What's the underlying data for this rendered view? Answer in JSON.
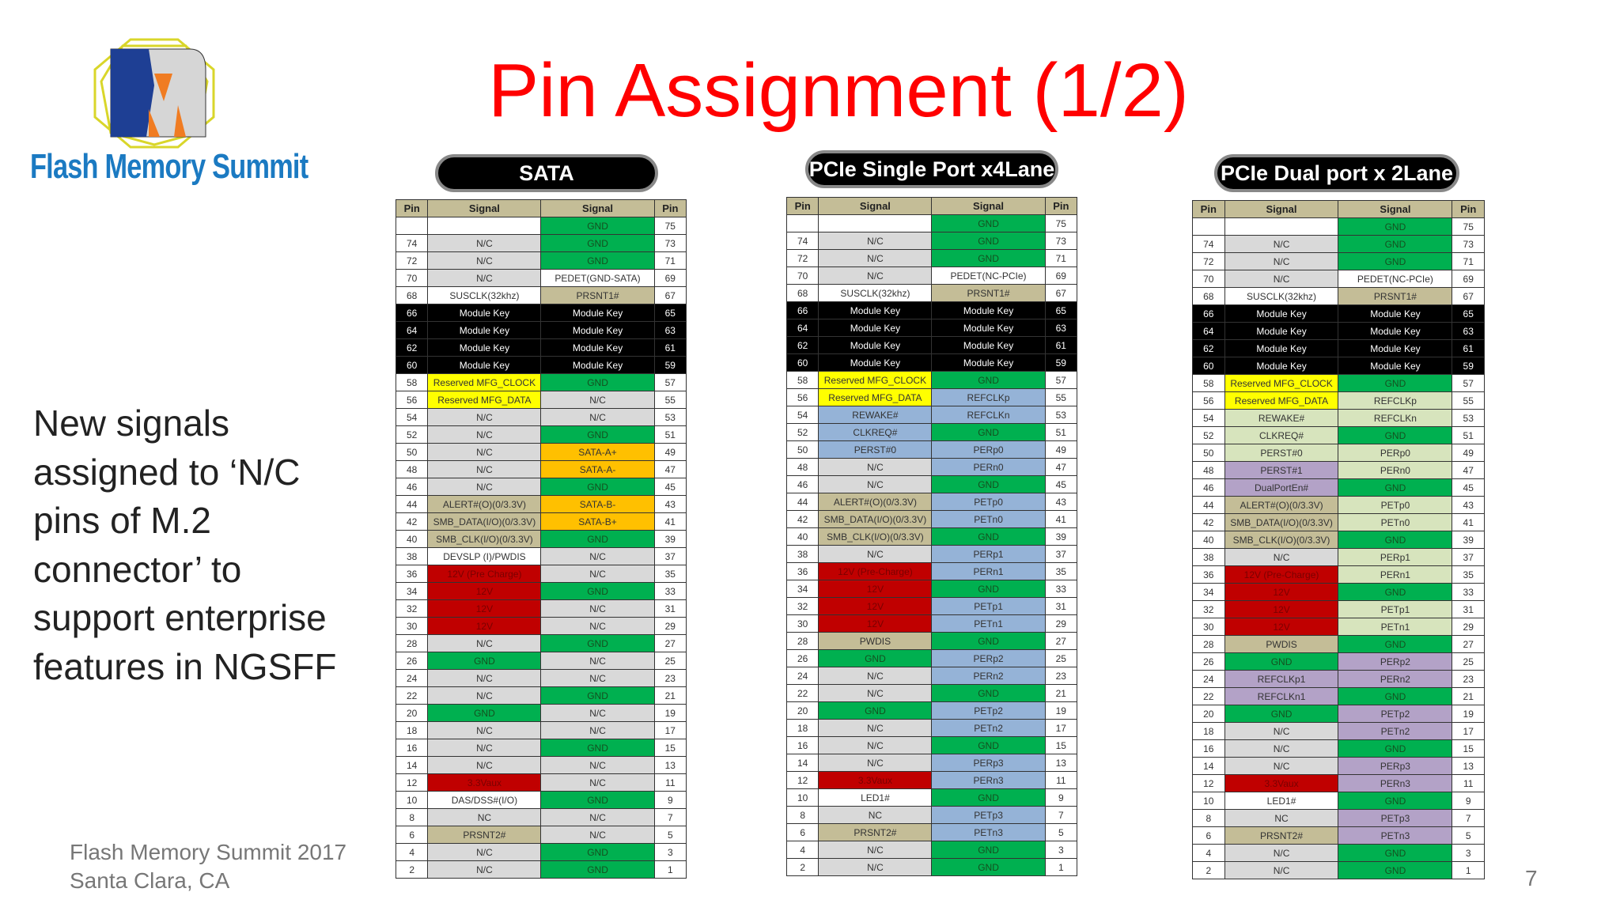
{
  "slide": {
    "title": "Pin Assignment (1/2)",
    "logo_text": "Flash Memory Summit",
    "body": "New signals assigned to ‘N/C pins of M.2 connector’ to support enterprise features in NGSFF",
    "footer_line1": "Flash Memory Summit 2017",
    "footer_line2": "Santa Clara, CA",
    "page_number": "7"
  },
  "colors": {
    "g": "#00b050",
    "n": "#d9d9d9",
    "w": "#ffffff",
    "t": "#c4bd97",
    "k": "#000000",
    "y": "#ffff00",
    "o": "#ffc000",
    "r": "#c00000",
    "b": "#95b3d7",
    "lg": "#d7e4bd",
    "p": "#b3a2c7",
    "title": "#ff0000",
    "logo_blue": "#1b7ac2"
  },
  "tables": [
    {
      "label": "SATA",
      "headers": [
        "Pin",
        "Signal",
        "Signal",
        "Pin"
      ],
      "rows": [
        [
          "",
          "",
          "w",
          "GND",
          "g",
          "75"
        ],
        [
          "74",
          "N/C",
          "n",
          "GND",
          "g",
          "73"
        ],
        [
          "72",
          "N/C",
          "n",
          "GND",
          "g",
          "71"
        ],
        [
          "70",
          "N/C",
          "n",
          "PEDET(GND-SATA)",
          "w",
          "69"
        ],
        [
          "68",
          "SUSCLK(32khz)",
          "w",
          "PRSNT1#",
          "t",
          "67"
        ],
        [
          "66",
          "Module Key",
          "k",
          "Module Key",
          "k",
          "65"
        ],
        [
          "64",
          "Module Key",
          "k",
          "Module Key",
          "k",
          "63"
        ],
        [
          "62",
          "Module Key",
          "k",
          "Module Key",
          "k",
          "61"
        ],
        [
          "60",
          "Module Key",
          "k",
          "Module Key",
          "k",
          "59"
        ],
        [
          "58",
          "Reserved MFG_CLOCK",
          "y",
          "GND",
          "g",
          "57"
        ],
        [
          "56",
          "Reserved MFG_DATA",
          "y",
          "N/C",
          "n",
          "55"
        ],
        [
          "54",
          "N/C",
          "n",
          "N/C",
          "n",
          "53"
        ],
        [
          "52",
          "N/C",
          "n",
          "GND",
          "g",
          "51"
        ],
        [
          "50",
          "N/C",
          "n",
          "SATA-A+",
          "o",
          "49"
        ],
        [
          "48",
          "N/C",
          "n",
          "SATA-A-",
          "o",
          "47"
        ],
        [
          "46",
          "N/C",
          "n",
          "GND",
          "g",
          "45"
        ],
        [
          "44",
          "ALERT#(O)(0/3.3V)",
          "t",
          "SATA-B-",
          "o",
          "43"
        ],
        [
          "42",
          "SMB_DATA(I/O)(0/3.3V)",
          "t",
          "SATA-B+",
          "o",
          "41"
        ],
        [
          "40",
          "SMB_CLK(I/O)(0/3.3V)",
          "t",
          "GND",
          "g",
          "39"
        ],
        [
          "38",
          "DEVSLP (I)/PWDIS",
          "w",
          "N/C",
          "n",
          "37"
        ],
        [
          "36",
          "12V (Pre Charge)",
          "r",
          "N/C",
          "n",
          "35"
        ],
        [
          "34",
          "12V",
          "r",
          "GND",
          "g",
          "33"
        ],
        [
          "32",
          "12V",
          "r",
          "N/C",
          "n",
          "31"
        ],
        [
          "30",
          "12V",
          "r",
          "N/C",
          "n",
          "29"
        ],
        [
          "28",
          "N/C",
          "n",
          "GND",
          "g",
          "27"
        ],
        [
          "26",
          "GND",
          "g",
          "N/C",
          "n",
          "25"
        ],
        [
          "24",
          "N/C",
          "n",
          "N/C",
          "n",
          "23"
        ],
        [
          "22",
          "N/C",
          "n",
          "GND",
          "g",
          "21"
        ],
        [
          "20",
          "GND",
          "g",
          "N/C",
          "n",
          "19"
        ],
        [
          "18",
          "N/C",
          "n",
          "N/C",
          "n",
          "17"
        ],
        [
          "16",
          "N/C",
          "n",
          "GND",
          "g",
          "15"
        ],
        [
          "14",
          "N/C",
          "n",
          "N/C",
          "n",
          "13"
        ],
        [
          "12",
          "3.3Vaux",
          "r",
          "N/C",
          "n",
          "11"
        ],
        [
          "10",
          "DAS/DSS#(I/O)",
          "w",
          "GND",
          "g",
          "9"
        ],
        [
          "8",
          "NC",
          "n",
          "N/C",
          "n",
          "7"
        ],
        [
          "6",
          "PRSNT2#",
          "t",
          "N/C",
          "n",
          "5"
        ],
        [
          "4",
          "N/C",
          "n",
          "GND",
          "g",
          "3"
        ],
        [
          "2",
          "N/C",
          "n",
          "GND",
          "g",
          "1"
        ]
      ]
    },
    {
      "label": "PCIe Single Port x4Lane",
      "headers": [
        "Pin",
        "Signal",
        "Signal",
        "Pin"
      ],
      "rows": [
        [
          "",
          "",
          "w",
          "GND",
          "g",
          "75"
        ],
        [
          "74",
          "N/C",
          "n",
          "GND",
          "g",
          "73"
        ],
        [
          "72",
          "N/C",
          "n",
          "GND",
          "g",
          "71"
        ],
        [
          "70",
          "N/C",
          "n",
          "PEDET(NC-PCIe)",
          "w",
          "69"
        ],
        [
          "68",
          "SUSCLK(32khz)",
          "w",
          "PRSNT1#",
          "t",
          "67"
        ],
        [
          "66",
          "Module Key",
          "k",
          "Module Key",
          "k",
          "65"
        ],
        [
          "64",
          "Module Key",
          "k",
          "Module Key",
          "k",
          "63"
        ],
        [
          "62",
          "Module Key",
          "k",
          "Module Key",
          "k",
          "61"
        ],
        [
          "60",
          "Module Key",
          "k",
          "Module Key",
          "k",
          "59"
        ],
        [
          "58",
          "Reserved MFG_CLOCK",
          "y",
          "GND",
          "g",
          "57"
        ],
        [
          "56",
          "Reserved MFG_DATA",
          "y",
          "REFCLKp",
          "b",
          "55"
        ],
        [
          "54",
          "REWAKE#",
          "b",
          "REFCLKn",
          "b",
          "53"
        ],
        [
          "52",
          "CLKREQ#",
          "b",
          "GND",
          "g",
          "51"
        ],
        [
          "50",
          "PERST#0",
          "b",
          "PERp0",
          "b",
          "49"
        ],
        [
          "48",
          "N/C",
          "n",
          "PERn0",
          "b",
          "47"
        ],
        [
          "46",
          "N/C",
          "n",
          "GND",
          "g",
          "45"
        ],
        [
          "44",
          "ALERT#(O)(0/3.3V)",
          "t",
          "PETp0",
          "b",
          "43"
        ],
        [
          "42",
          "SMB_DATA(I/O)(0/3.3V)",
          "t",
          "PETn0",
          "b",
          "41"
        ],
        [
          "40",
          "SMB_CLK(I/O)(0/3.3V)",
          "t",
          "GND",
          "g",
          "39"
        ],
        [
          "38",
          "N/C",
          "n",
          "PERp1",
          "b",
          "37"
        ],
        [
          "36",
          "12V (Pre-Charge)",
          "r",
          "PERn1",
          "b",
          "35"
        ],
        [
          "34",
          "12V",
          "r",
          "GND",
          "g",
          "33"
        ],
        [
          "32",
          "12V",
          "r",
          "PETp1",
          "b",
          "31"
        ],
        [
          "30",
          "12V",
          "r",
          "PETn1",
          "b",
          "29"
        ],
        [
          "28",
          "PWDIS",
          "t",
          "GND",
          "g",
          "27"
        ],
        [
          "26",
          "GND",
          "g",
          "PERp2",
          "b",
          "25"
        ],
        [
          "24",
          "N/C",
          "n",
          "PERn2",
          "b",
          "23"
        ],
        [
          "22",
          "N/C",
          "n",
          "GND",
          "g",
          "21"
        ],
        [
          "20",
          "GND",
          "g",
          "PETp2",
          "b",
          "19"
        ],
        [
          "18",
          "N/C",
          "n",
          "PETn2",
          "b",
          "17"
        ],
        [
          "16",
          "N/C",
          "n",
          "GND",
          "g",
          "15"
        ],
        [
          "14",
          "N/C",
          "n",
          "PERp3",
          "b",
          "13"
        ],
        [
          "12",
          "3.3Vaux",
          "r",
          "PERn3",
          "b",
          "11"
        ],
        [
          "10",
          "LED1#",
          "w",
          "GND",
          "g",
          "9"
        ],
        [
          "8",
          "NC",
          "n",
          "PETp3",
          "b",
          "7"
        ],
        [
          "6",
          "PRSNT2#",
          "t",
          "PETn3",
          "b",
          "5"
        ],
        [
          "4",
          "N/C",
          "n",
          "GND",
          "g",
          "3"
        ],
        [
          "2",
          "N/C",
          "n",
          "GND",
          "g",
          "1"
        ]
      ]
    },
    {
      "label": "PCIe Dual port x 2Lane",
      "headers": [
        "Pin",
        "Signal",
        "Signal",
        "Pin"
      ],
      "rows": [
        [
          "",
          "",
          "w",
          "GND",
          "g",
          "75"
        ],
        [
          "74",
          "N/C",
          "n",
          "GND",
          "g",
          "73"
        ],
        [
          "72",
          "N/C",
          "n",
          "GND",
          "g",
          "71"
        ],
        [
          "70",
          "N/C",
          "n",
          "PEDET(NC-PCIe)",
          "w",
          "69"
        ],
        [
          "68",
          "SUSCLK(32khz)",
          "w",
          "PRSNT1#",
          "t",
          "67"
        ],
        [
          "66",
          "Module Key",
          "k",
          "Module Key",
          "k",
          "65"
        ],
        [
          "64",
          "Module Key",
          "k",
          "Module Key",
          "k",
          "63"
        ],
        [
          "62",
          "Module Key",
          "k",
          "Module Key",
          "k",
          "61"
        ],
        [
          "60",
          "Module Key",
          "k",
          "Module Key",
          "k",
          "59"
        ],
        [
          "58",
          "Reserved MFG_CLOCK",
          "y",
          "GND",
          "g",
          "57"
        ],
        [
          "56",
          "Reserved MFG_DATA",
          "y",
          "REFCLKp",
          "lg",
          "55"
        ],
        [
          "54",
          "REWAKE#",
          "lg",
          "REFCLKn",
          "lg",
          "53"
        ],
        [
          "52",
          "CLKREQ#",
          "lg",
          "GND",
          "g",
          "51"
        ],
        [
          "50",
          "PERST#0",
          "lg",
          "PERp0",
          "lg",
          "49"
        ],
        [
          "48",
          "PERST#1",
          "p",
          "PERn0",
          "lg",
          "47"
        ],
        [
          "46",
          "DualPortEn#",
          "p",
          "GND",
          "g",
          "45"
        ],
        [
          "44",
          "ALERT#(O)(0/3.3V)",
          "t",
          "PETp0",
          "lg",
          "43"
        ],
        [
          "42",
          "SMB_DATA(I/O)(0/3.3V)",
          "t",
          "PETn0",
          "lg",
          "41"
        ],
        [
          "40",
          "SMB_CLK(I/O)(0/3.3V)",
          "t",
          "GND",
          "g",
          "39"
        ],
        [
          "38",
          "N/C",
          "n",
          "PERp1",
          "lg",
          "37"
        ],
        [
          "36",
          "12V (Pre-Charge)",
          "r",
          "PERn1",
          "lg",
          "35"
        ],
        [
          "34",
          "12V",
          "r",
          "GND",
          "g",
          "33"
        ],
        [
          "32",
          "12V",
          "r",
          "PETp1",
          "lg",
          "31"
        ],
        [
          "30",
          "12V",
          "r",
          "PETn1",
          "lg",
          "29"
        ],
        [
          "28",
          "PWDIS",
          "t",
          "GND",
          "g",
          "27"
        ],
        [
          "26",
          "GND",
          "g",
          "PERp2",
          "p",
          "25"
        ],
        [
          "24",
          "REFCLKp1",
          "p",
          "PERn2",
          "p",
          "23"
        ],
        [
          "22",
          "REFCLKn1",
          "p",
          "GND",
          "g",
          "21"
        ],
        [
          "20",
          "GND",
          "g",
          "PETp2",
          "p",
          "19"
        ],
        [
          "18",
          "N/C",
          "n",
          "PETn2",
          "p",
          "17"
        ],
        [
          "16",
          "N/C",
          "n",
          "GND",
          "g",
          "15"
        ],
        [
          "14",
          "N/C",
          "n",
          "PERp3",
          "p",
          "13"
        ],
        [
          "12",
          "3.3Vaux",
          "r",
          "PERn3",
          "p",
          "11"
        ],
        [
          "10",
          "LED1#",
          "w",
          "GND",
          "g",
          "9"
        ],
        [
          "8",
          "NC",
          "n",
          "PETp3",
          "p",
          "7"
        ],
        [
          "6",
          "PRSNT2#",
          "t",
          "PETn3",
          "p",
          "5"
        ],
        [
          "4",
          "N/C",
          "n",
          "GND",
          "g",
          "3"
        ],
        [
          "2",
          "N/C",
          "n",
          "GND",
          "g",
          "1"
        ]
      ]
    }
  ]
}
